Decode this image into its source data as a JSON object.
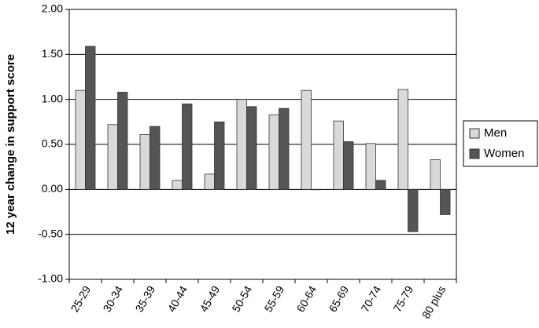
{
  "chart_data": {
    "type": "bar",
    "y_label": "12 year change in support score",
    "categories": [
      "25-29",
      "30-34",
      "35-39",
      "40-44",
      "45-49",
      "50-54",
      "55-59",
      "60-64",
      "65-69",
      "70-74",
      "75-79",
      "80 plus"
    ],
    "series": [
      {
        "name": "Men",
        "color": "#d9d9d9",
        "values": [
          1.1,
          0.72,
          0.61,
          0.1,
          0.17,
          1.0,
          0.83,
          1.1,
          0.76,
          0.51,
          1.11,
          0.33
        ]
      },
      {
        "name": "Women",
        "color": "#555555",
        "values": [
          1.59,
          1.08,
          0.7,
          0.95,
          0.75,
          0.92,
          0.9,
          0.0,
          0.53,
          0.1,
          -0.47,
          -0.28
        ]
      }
    ],
    "ylim": [
      -1,
      2
    ],
    "yticks": [
      {
        "value": -1,
        "label": "-1.00"
      },
      {
        "value": -0.5,
        "label": "-0.50"
      },
      {
        "value": 0,
        "label": "0.00"
      },
      {
        "value": 0.5,
        "label": "0.50"
      },
      {
        "value": 1,
        "label": "1.00"
      },
      {
        "value": 1.5,
        "label": "1.50"
      },
      {
        "value": 2,
        "label": "2.00"
      }
    ],
    "grid": true,
    "legend": "right"
  }
}
